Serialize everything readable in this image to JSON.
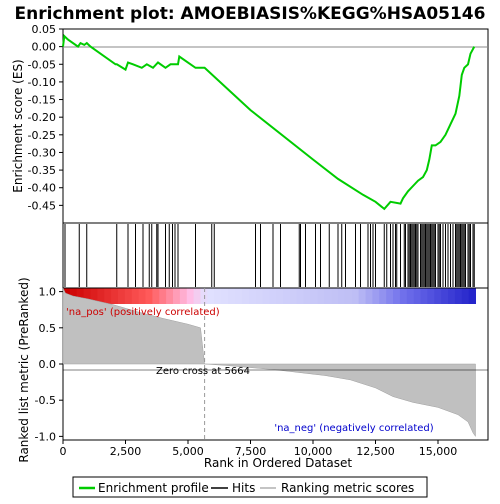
{
  "chart_data": {
    "type": "line",
    "title": "Enrichment plot: AMOEBIASIS%KEGG%HSA05146",
    "top_panel": {
      "ylabel": "Enrichment score (ES)",
      "ylim": [
        -0.5,
        0.05
      ],
      "yticks": [
        0.05,
        0.0,
        -0.05,
        -0.1,
        -0.15,
        -0.2,
        -0.25,
        -0.3,
        -0.35,
        -0.4,
        -0.45
      ],
      "ytick_labels": [
        "0.05",
        "0.00",
        "-0.05",
        "-0.10",
        "-0.15",
        "-0.20",
        "-0.25",
        "-0.30",
        "-0.35",
        "-0.40",
        "-0.45"
      ],
      "series_color": "#00cc00",
      "es_profile": [
        [
          0,
          0.0
        ],
        [
          50,
          0.03
        ],
        [
          200,
          0.02
        ],
        [
          600,
          0.0
        ],
        [
          700,
          0.01
        ],
        [
          850,
          0.005
        ],
        [
          950,
          0.01
        ],
        [
          1100,
          0.0
        ],
        [
          2100,
          -0.05
        ],
        [
          2150,
          -0.05
        ],
        [
          2500,
          -0.065
        ],
        [
          2600,
          -0.045
        ],
        [
          2800,
          -0.05
        ],
        [
          3150,
          -0.06
        ],
        [
          3350,
          -0.05
        ],
        [
          3600,
          -0.06
        ],
        [
          3800,
          -0.045
        ],
        [
          4100,
          -0.06
        ],
        [
          4300,
          -0.05
        ],
        [
          4600,
          -0.05
        ],
        [
          4650,
          -0.028
        ],
        [
          5300,
          -0.06
        ],
        [
          5664,
          -0.06
        ],
        [
          7500,
          -0.18
        ],
        [
          10000,
          -0.32
        ],
        [
          11000,
          -0.375
        ],
        [
          12000,
          -0.42
        ],
        [
          12500,
          -0.44
        ],
        [
          12850,
          -0.46
        ],
        [
          13100,
          -0.44
        ],
        [
          13500,
          -0.445
        ],
        [
          13600,
          -0.43
        ],
        [
          13800,
          -0.41
        ],
        [
          14000,
          -0.395
        ],
        [
          14200,
          -0.38
        ],
        [
          14400,
          -0.37
        ],
        [
          14550,
          -0.35
        ],
        [
          14650,
          -0.32
        ],
        [
          14750,
          -0.28
        ],
        [
          14900,
          -0.28
        ],
        [
          15100,
          -0.27
        ],
        [
          15300,
          -0.25
        ],
        [
          15500,
          -0.22
        ],
        [
          15700,
          -0.19
        ],
        [
          15850,
          -0.14
        ],
        [
          15950,
          -0.08
        ],
        [
          16050,
          -0.06
        ],
        [
          16200,
          -0.05
        ],
        [
          16300,
          -0.02
        ],
        [
          16450,
          0.0
        ]
      ],
      "hits_rank": [
        80,
        650,
        950,
        2150,
        2600,
        2900,
        3200,
        3450,
        3550,
        3750,
        3800,
        4100,
        4250,
        4380,
        4480,
        4600,
        5300,
        5950,
        6050,
        7700,
        7900,
        8400,
        8700,
        9450,
        9500,
        9700,
        10100,
        10300,
        10650,
        11000,
        11150,
        11300,
        11700,
        11900,
        12200,
        12300,
        12400,
        12500,
        12850,
        12950,
        13100,
        13200,
        13300,
        13350,
        13500,
        13650,
        13700,
        13800,
        13850,
        13900,
        13950,
        14000,
        14050,
        14100,
        14150,
        14200,
        14300,
        14350,
        14400,
        14450,
        14500,
        14550,
        14600,
        14650,
        14700,
        14750,
        14800,
        14850,
        14900,
        15000,
        15050,
        15100,
        15200,
        15300,
        15400,
        15500,
        15600,
        15700,
        15750,
        15800,
        15850,
        15900,
        15950,
        16000,
        16050,
        16100,
        16200,
        16250,
        16300,
        16400,
        16450
      ]
    },
    "bottom_panel": {
      "ylabel": "Ranked list metric (PreRanked)",
      "xlabel": "Rank in Ordered Dataset",
      "xlim": [
        0,
        17000
      ],
      "ylim": [
        -1.05,
        1.05
      ],
      "yticks": [
        1.0,
        0.5,
        0.0,
        -0.5,
        -1.0
      ],
      "ytick_labels": [
        "1.0",
        "0.5",
        "0.0",
        "-0.5",
        "-1.0"
      ],
      "xticks": [
        0,
        2500,
        5000,
        7500,
        10000,
        12500,
        15000
      ],
      "xtick_labels": [
        "0",
        "2,500",
        "5,000",
        "7,500",
        "10,000",
        "12,500",
        "15,000"
      ],
      "zero_cross_rank": 5664,
      "zero_cross_label": "Zero cross at 5664",
      "pos_label": "'na_pos' (positively correlated)",
      "neg_label": "'na_neg' (negatively correlated)",
      "metric_profile": [
        [
          0,
          1.05
        ],
        [
          100,
          0.98
        ],
        [
          400,
          0.94
        ],
        [
          1000,
          0.9
        ],
        [
          2000,
          0.82
        ],
        [
          3000,
          0.72
        ],
        [
          4000,
          0.63
        ],
        [
          5000,
          0.55
        ],
        [
          5500,
          0.5
        ],
        [
          5664,
          0.0
        ],
        [
          6500,
          -0.02
        ],
        [
          7500,
          -0.05
        ],
        [
          8500,
          -0.08
        ],
        [
          9500,
          -0.12
        ],
        [
          10500,
          -0.16
        ],
        [
          11500,
          -0.22
        ],
        [
          12500,
          -0.33
        ],
        [
          13200,
          -0.45
        ],
        [
          14000,
          -0.53
        ],
        [
          15000,
          -0.6
        ],
        [
          15800,
          -0.7
        ],
        [
          16200,
          -0.8
        ],
        [
          16400,
          -0.95
        ],
        [
          16500,
          -1.0
        ]
      ]
    },
    "legend": {
      "placement": "bottom",
      "items": [
        {
          "label": "Enrichment profile",
          "color": "#00cc00"
        },
        {
          "label": "Hits",
          "color": "#000000"
        },
        {
          "label": "Ranking metric scores",
          "color": "#b0b0b0"
        }
      ]
    }
  }
}
